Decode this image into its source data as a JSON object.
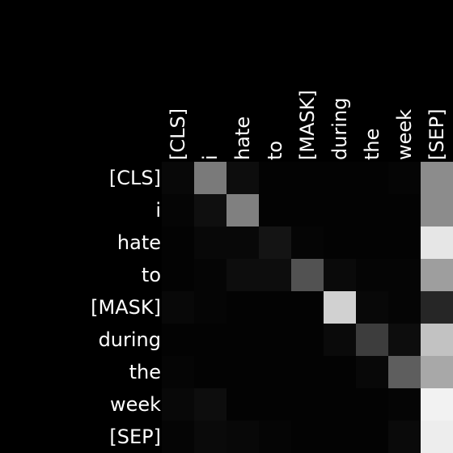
{
  "chart_data": {
    "type": "heatmap",
    "x_tokens": [
      "[CLS]",
      "i",
      "hate",
      "to",
      "[MASK]",
      "during",
      "the",
      "week",
      "[SEP]"
    ],
    "y_tokens": [
      "[CLS]",
      "i",
      "hate",
      "to",
      "[MASK]",
      "during",
      "the",
      "week",
      "[SEP]"
    ],
    "colormap": "grayscale",
    "vmin": 0,
    "vmax": 1,
    "x_tick_position": "top",
    "x_tick_rotation": 90,
    "grid": false,
    "legend": "none",
    "values": [
      [
        0.03,
        0.48,
        0.05,
        0.01,
        0.01,
        0.01,
        0.01,
        0.02,
        0.55
      ],
      [
        0.02,
        0.06,
        0.5,
        0.01,
        0.01,
        0.01,
        0.01,
        0.01,
        0.55
      ],
      [
        0.01,
        0.03,
        0.03,
        0.08,
        0.02,
        0.01,
        0.01,
        0.01,
        0.9
      ],
      [
        0.01,
        0.02,
        0.05,
        0.05,
        0.32,
        0.04,
        0.02,
        0.02,
        0.62
      ],
      [
        0.03,
        0.02,
        0.01,
        0.01,
        0.01,
        0.82,
        0.03,
        0.02,
        0.15
      ],
      [
        0.01,
        0.01,
        0.01,
        0.01,
        0.01,
        0.04,
        0.24,
        0.05,
        0.76
      ],
      [
        0.02,
        0.01,
        0.01,
        0.01,
        0.01,
        0.01,
        0.03,
        0.37,
        0.66
      ],
      [
        0.03,
        0.05,
        0.01,
        0.01,
        0.01,
        0.01,
        0.01,
        0.02,
        0.95
      ],
      [
        0.02,
        0.04,
        0.03,
        0.02,
        0.01,
        0.01,
        0.01,
        0.04,
        0.93
      ]
    ]
  }
}
